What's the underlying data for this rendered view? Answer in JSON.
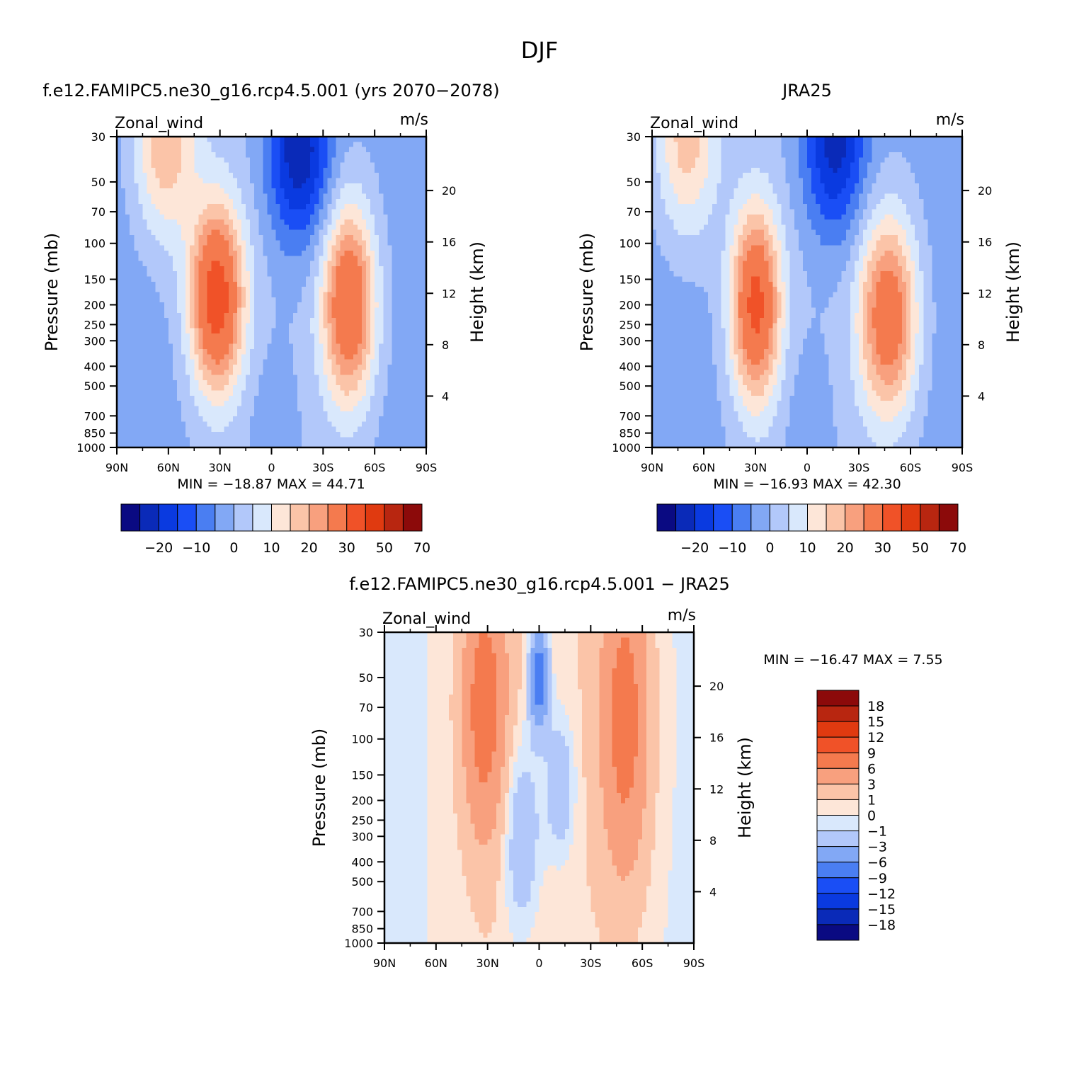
{
  "figure": {
    "title": "DJF"
  },
  "palette": {
    "full": [
      "#0a0a82",
      "#0a2ab8",
      "#0a3ae0",
      "#1a4ef5",
      "#4a7ef2",
      "#82a8f5",
      "#b2c8fa",
      "#d9e8fc",
      "#fde6d8",
      "#fbc4a8",
      "#f8a07e",
      "#f47a4e",
      "#f05228",
      "#e03a10",
      "#b82610",
      "#8c0a0a"
    ],
    "model_bands": [
      [
        -20,
        "#0a2ab8"
      ],
      [
        -15,
        "#0a3ae0"
      ],
      [
        -10,
        "#1a4ef5"
      ],
      [
        -5,
        "#4a7ef2"
      ],
      [
        0,
        "#82a8f5"
      ],
      [
        5,
        "#b2c8fa"
      ],
      [
        10,
        "#d9e8fc"
      ],
      [
        15,
        "#fde6d8"
      ],
      [
        20,
        "#fbc4a8"
      ],
      [
        25,
        "#f8a07e"
      ],
      [
        30,
        "#f47a4e"
      ],
      [
        40,
        "#f05228"
      ]
    ],
    "diff_bands": [
      [
        -9,
        "#4a7ef2"
      ],
      [
        -6,
        "#82a8f5"
      ],
      [
        -3,
        "#b2c8fa"
      ],
      [
        -1,
        "#d9e8fc"
      ],
      [
        0,
        "#fde6d8"
      ],
      [
        1,
        "#fbc4a8"
      ],
      [
        3,
        "#f8a07e"
      ],
      [
        6,
        "#f47a4e"
      ]
    ]
  },
  "chart_data": [
    {
      "type": "heatmap",
      "panel": "model",
      "title": "f.e12.FAMIPC5.ne30_g16.rcp4.5.001 (yrs 2070-2078)",
      "variable": "Zonal_wind",
      "units": "m/s",
      "ylabel": "Pressure (mb)",
      "ylabel_right": "Height (km)",
      "x_ticks": [
        "90N",
        "60N",
        "30N",
        "0",
        "30S",
        "60S",
        "90S"
      ],
      "x_range": [
        90,
        -90
      ],
      "y_ticks": [
        30,
        50,
        70,
        100,
        150,
        200,
        250,
        300,
        400,
        500,
        700,
        850,
        1000
      ],
      "y_range": [
        30,
        1000
      ],
      "y_scale": "log",
      "height_ticks": [
        20,
        16,
        12,
        8,
        4
      ],
      "stats": {
        "min": "-18.87",
        "max": "44.71"
      },
      "stats_text": "MIN = −18.87   MAX =   44.71",
      "jets": [
        {
          "lat": 32,
          "pressure": 185,
          "speed": 45,
          "lat_width": 11,
          "log_width": 0.32
        },
        {
          "lat": -45,
          "pressure": 200,
          "speed": 40,
          "lat_width": 11,
          "log_width": 0.34
        }
      ],
      "strat_jet": {
        "lat": 62,
        "pressure": 30,
        "speed": 28
      },
      "easterly": {
        "lat": -16,
        "pressure": 35,
        "speed": -18.87
      },
      "colorbar": {
        "orientation": "horizontal",
        "labels": [
          "-20",
          "-10",
          "0",
          "10",
          "20",
          "30",
          "50",
          "70"
        ]
      }
    },
    {
      "type": "heatmap",
      "panel": "obs",
      "title": "JRA25",
      "variable": "Zonal_wind",
      "units": "m/s",
      "ylabel": "Pressure (mb)",
      "ylabel_right": "Height (km)",
      "x_ticks": [
        "90N",
        "60N",
        "30N",
        "0",
        "30S",
        "60S",
        "90S"
      ],
      "x_range": [
        90,
        -90
      ],
      "y_ticks": [
        30,
        50,
        70,
        100,
        150,
        200,
        250,
        300,
        400,
        500,
        700,
        850,
        1000
      ],
      "y_range": [
        30,
        1000
      ],
      "y_scale": "log",
      "height_ticks": [
        20,
        16,
        12,
        8,
        4
      ],
      "stats": {
        "min": "-16.93",
        "max": "42.30"
      },
      "stats_text": "MIN = −16.93   MAX =   42.30",
      "jets": [
        {
          "lat": 30,
          "pressure": 200,
          "speed": 42,
          "lat_width": 10,
          "log_width": 0.33
        },
        {
          "lat": -47,
          "pressure": 230,
          "speed": 37,
          "lat_width": 12,
          "log_width": 0.35
        }
      ],
      "strat_jet": {
        "lat": 70,
        "pressure": 30,
        "speed": 26
      },
      "easterly": {
        "lat": -16,
        "pressure": 32,
        "speed": -16.93
      },
      "colorbar": {
        "orientation": "horizontal",
        "labels": [
          "-20",
          "-10",
          "0",
          "10",
          "20",
          "30",
          "50",
          "70"
        ]
      }
    },
    {
      "type": "heatmap",
      "panel": "difference",
      "title": "f.e12.FAMIPC5.ne30_g16.rcp4.5.001 - JRA25",
      "variable": "Zonal_wind",
      "units": "m/s",
      "ylabel": "Pressure (mb)",
      "ylabel_right": "Height (km)",
      "x_ticks": [
        "90N",
        "60N",
        "30N",
        "0",
        "30S",
        "60S",
        "90S"
      ],
      "x_range": [
        90,
        -90
      ],
      "y_ticks": [
        30,
        50,
        70,
        100,
        150,
        200,
        250,
        300,
        400,
        500,
        700,
        850,
        1000
      ],
      "y_range": [
        30,
        1000
      ],
      "y_scale": "log",
      "height_ticks": [
        20,
        16,
        12,
        8,
        4
      ],
      "stats": {
        "min": "-16.47",
        "max": "7.55"
      },
      "stats_text": "MIN = −16.47   MAX =    7.55",
      "features": [
        {
          "lat": 32,
          "pressure": 70,
          "value": 7.5,
          "lat_width": 9,
          "log_width": 0.45
        },
        {
          "lat": -50,
          "pressure": 80,
          "value": 7.5,
          "lat_width": 10,
          "log_width": 0.55
        },
        {
          "lat": 0,
          "pressure": 50,
          "value": -9,
          "lat_width": 4,
          "log_width": 0.18
        },
        {
          "lat": 10,
          "pressure": 300,
          "value": -3.5,
          "lat_width": 8,
          "log_width": 0.35
        },
        {
          "lat": -12,
          "pressure": 170,
          "value": -3.5,
          "lat_width": 6,
          "log_width": 0.25
        }
      ],
      "colorbar": {
        "orientation": "vertical",
        "labels": [
          "18",
          "15",
          "12",
          "9",
          "6",
          "3",
          "1",
          "0",
          "-1",
          "-3",
          "-6",
          "-9",
          "-12",
          "-15",
          "-18"
        ]
      }
    }
  ]
}
